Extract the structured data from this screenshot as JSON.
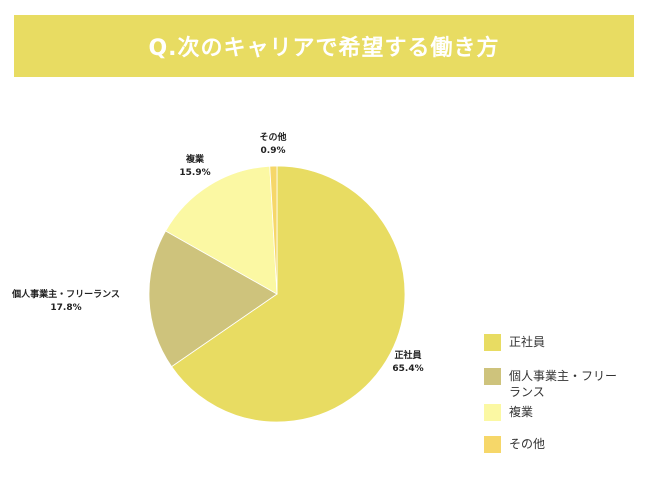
{
  "banner": {
    "title": "Q.次のキャリアで希望する働き方",
    "background": "#e8dc62"
  },
  "chart_data": {
    "type": "pie",
    "title": "Q.次のキャリアで希望する働き方",
    "start_angle": "12 o'clock, clockwise",
    "slices": [
      {
        "label": "正社員",
        "value": 65.4,
        "value_label": "65.4%",
        "color": "#e8dc62"
      },
      {
        "label": "個人事業主・フリーランス",
        "value": 17.8,
        "value_label": "17.8%",
        "color": "#cec37c"
      },
      {
        "label": "複業",
        "value": 15.9,
        "value_label": "15.9%",
        "color": "#fbf8a3"
      },
      {
        "label": "その他",
        "value": 0.9,
        "value_label": "0.9%",
        "color": "#f6d769"
      }
    ],
    "legend": {
      "position": "right",
      "items": [
        "正社員",
        "個人事業主・フリーランス",
        "複業",
        "その他"
      ]
    }
  }
}
